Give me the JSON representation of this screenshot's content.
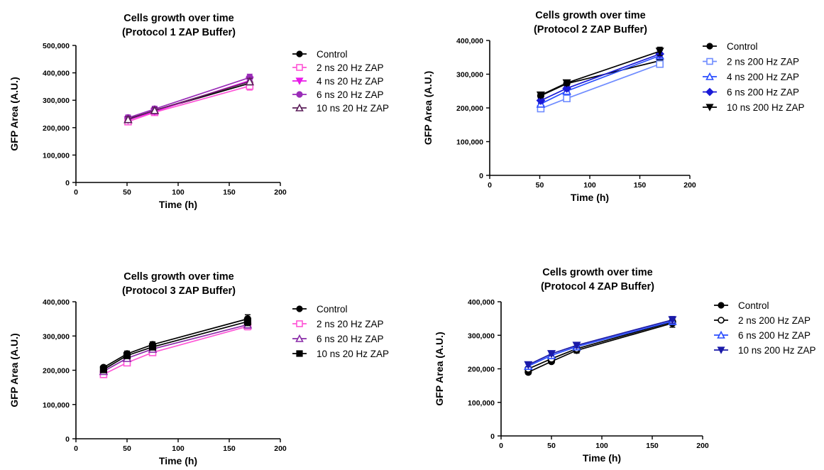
{
  "chart_data": [
    {
      "type": "line",
      "title": "Cells growth over time",
      "subtitle": "(Protocol 1 ZAP Buffer)",
      "xlabel": "Time (h)",
      "ylabel": "GFP Area (A.U.)",
      "xlim": [
        0,
        200
      ],
      "ylim": [
        0,
        500000
      ],
      "x_ticks": [
        "0",
        "50",
        "100",
        "150",
        "200"
      ],
      "y_ticks": [
        "0",
        "100,000",
        "200,000",
        "300,000",
        "400,000",
        "500,000"
      ],
      "legend_position": "right",
      "x": [
        51,
        77,
        170
      ],
      "series": [
        {
          "name": "Control",
          "color": "#000000",
          "marker": "circle",
          "values": [
            232000,
            262000,
            362000
          ],
          "errors": [
            12000,
            10000,
            15000
          ]
        },
        {
          "name": "2 ns 20 Hz ZAP",
          "color": "#ff55d6",
          "marker": "square-open",
          "values": [
            222000,
            256000,
            352000
          ],
          "errors": [
            10000,
            10000,
            15000
          ]
        },
        {
          "name": "4 ns 20 Hz ZAP",
          "color": "#e81ae8",
          "marker": "triangle-down",
          "values": [
            228000,
            259000,
            372000
          ],
          "errors": [
            10000,
            10000,
            12000
          ]
        },
        {
          "name": "6 ns 20 Hz ZAP",
          "color": "#9a2cb8",
          "marker": "circle",
          "values": [
            236000,
            268000,
            383000
          ],
          "errors": [
            10000,
            10000,
            12000
          ]
        },
        {
          "name": "10 ns 20 Hz ZAP",
          "color": "#5c1f5a",
          "marker": "triangle-open",
          "values": [
            230000,
            263000,
            368000
          ],
          "errors": [
            10000,
            10000,
            12000
          ]
        }
      ]
    },
    {
      "type": "line",
      "title": "Cells growth over time",
      "subtitle": "(Protocol 2 ZAP Buffer)",
      "xlabel": "Time (h)",
      "ylabel": "GFP Area (A.U.)",
      "xlim": [
        0,
        200
      ],
      "ylim": [
        0,
        400000
      ],
      "x_ticks": [
        "0",
        "50",
        "100",
        "150",
        "200"
      ],
      "y_ticks": [
        "0",
        "100,000",
        "200,000",
        "300,000",
        "400,000"
      ],
      "legend_position": "right",
      "x": [
        51,
        77,
        170
      ],
      "series": [
        {
          "name": "Control",
          "color": "#000000",
          "marker": "circle",
          "values": [
            236000,
            272000,
            340000
          ],
          "errors": [
            8000,
            8000,
            12000
          ]
        },
        {
          "name": "2 ns 200 Hz ZAP",
          "color": "#6f8cff",
          "marker": "square-open",
          "values": [
            198000,
            228000,
            330000
          ],
          "errors": [
            6000,
            6000,
            8000
          ]
        },
        {
          "name": "4 ns 200 Hz ZAP",
          "color": "#2a4dff",
          "marker": "triangle-open",
          "values": [
            212000,
            250000,
            355000
          ],
          "errors": [
            6000,
            8000,
            10000
          ]
        },
        {
          "name": "6 ns 200 Hz ZAP",
          "color": "#1a1ad6",
          "marker": "diamond",
          "values": [
            222000,
            258000,
            360000
          ],
          "errors": [
            8000,
            8000,
            10000
          ]
        },
        {
          "name": "10 ns 200 Hz ZAP",
          "color": "#000000",
          "marker": "triangle-down",
          "values": [
            238000,
            274000,
            368000
          ],
          "errors": [
            8000,
            8000,
            12000
          ]
        }
      ]
    },
    {
      "type": "line",
      "title": "Cells growth over time",
      "subtitle": "(Protocol 3 ZAP Buffer)",
      "xlabel": "Time (h)",
      "ylabel": "GFP Area (A.U.)",
      "xlim": [
        0,
        200
      ],
      "ylim": [
        0,
        400000
      ],
      "x_ticks": [
        "0",
        "50",
        "100",
        "150",
        "200"
      ],
      "y_ticks": [
        "0",
        "100,000",
        "200,000",
        "300,000",
        "400,000"
      ],
      "legend_position": "right",
      "x": [
        27,
        50,
        75,
        168
      ],
      "series": [
        {
          "name": "Control",
          "color": "#000000",
          "marker": "circle",
          "values": [
            208000,
            248000,
            275000,
            350000
          ],
          "errors": [
            5000,
            8000,
            8000,
            12000
          ]
        },
        {
          "name": "2 ns 20 Hz ZAP",
          "color": "#ff55d6",
          "marker": "square-open",
          "values": [
            188000,
            222000,
            252000,
            328000
          ],
          "errors": [
            5000,
            8000,
            8000,
            10000
          ]
        },
        {
          "name": "6 ns 20 Hz ZAP",
          "color": "#8a2ca8",
          "marker": "triangle-open",
          "values": [
            197000,
            235000,
            262000,
            333000
          ],
          "errors": [
            5000,
            8000,
            8000,
            10000
          ]
        },
        {
          "name": "10 ns 20 Hz ZAP",
          "color": "#000000",
          "marker": "square",
          "values": [
            202000,
            243000,
            268000,
            342000
          ],
          "errors": [
            5000,
            8000,
            8000,
            12000
          ]
        }
      ]
    },
    {
      "type": "line",
      "title": "Cells growth over time",
      "subtitle": "(Protocol 4 ZAP Buffer)",
      "xlabel": "Time (h)",
      "ylabel": "GFP Area (A.U.)",
      "xlim": [
        0,
        200
      ],
      "ylim": [
        0,
        400000
      ],
      "x_ticks": [
        "0",
        "50",
        "100",
        "150",
        "200"
      ],
      "y_ticks": [
        "0",
        "100,000",
        "200,000",
        "300,000",
        "400,000"
      ],
      "legend_position": "right",
      "x": [
        27,
        50,
        75,
        170
      ],
      "series": [
        {
          "name": "Control",
          "color": "#000000",
          "marker": "circle",
          "values": [
            190000,
            222000,
            255000,
            336000
          ],
          "errors": [
            6000,
            6000,
            8000,
            12000
          ]
        },
        {
          "name": "2 ns 200 Hz ZAP",
          "color": "#000000",
          "marker": "circle-open",
          "values": [
            200000,
            230000,
            260000,
            340000
          ],
          "errors": [
            6000,
            6000,
            8000,
            10000
          ]
        },
        {
          "name": "6 ns 200 Hz ZAP",
          "color": "#2a4dff",
          "marker": "triangle-open",
          "values": [
            208000,
            240000,
            266000,
            342000
          ],
          "errors": [
            6000,
            6000,
            8000,
            10000
          ]
        },
        {
          "name": "10 ns 200 Hz ZAP",
          "color": "#1a1aa8",
          "marker": "triangle-down",
          "values": [
            212000,
            245000,
            270000,
            346000
          ],
          "errors": [
            6000,
            6000,
            8000,
            10000
          ]
        }
      ]
    }
  ]
}
